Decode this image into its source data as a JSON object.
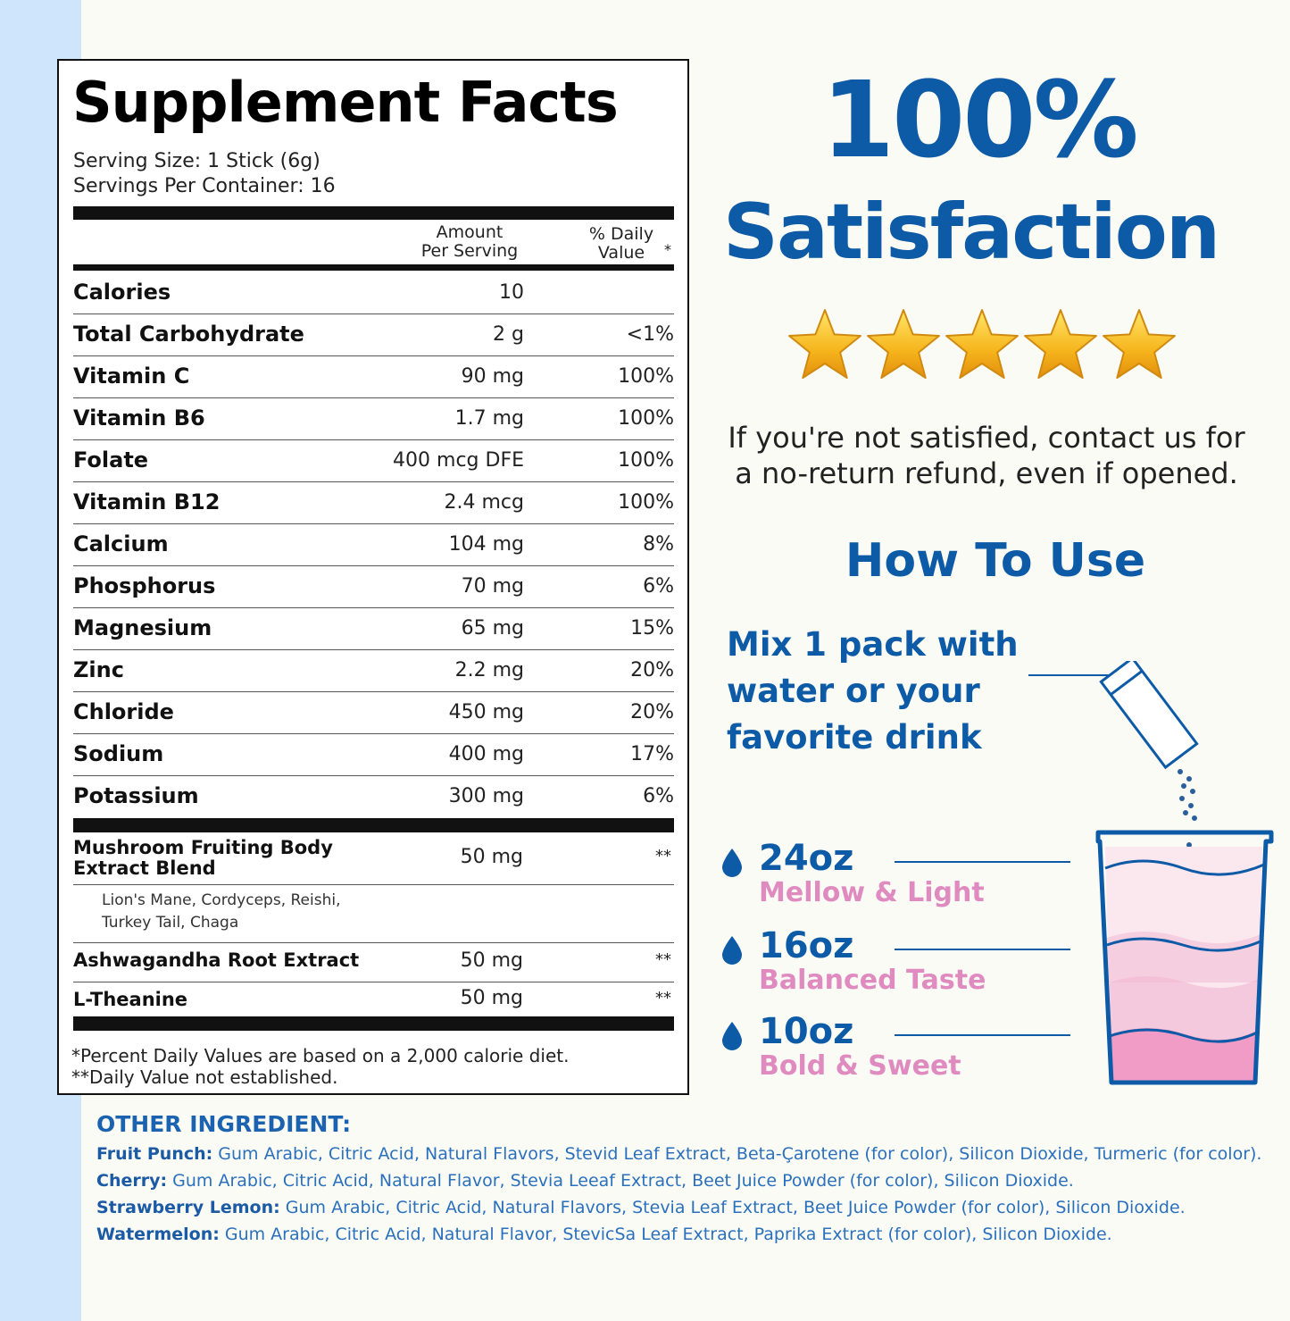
{
  "facts": {
    "title": "Supplement Facts",
    "serving_size": "Serving Size: 1 Stick (6g)",
    "servings_per_container": "Servings Per Container: 16",
    "col_amount_1": "Amount",
    "col_amount_2": "Per Serving",
    "col_dv_1": "% Daily",
    "col_dv_2": "Value",
    "col_dv_star": "*",
    "rows": [
      {
        "name": "Calories",
        "amount": "10",
        "dv": ""
      },
      {
        "name": "Total Carbohydrate",
        "amount": "2 g",
        "dv": "<1%"
      },
      {
        "name": "Vitamin C",
        "amount": "90 mg",
        "dv": "100%"
      },
      {
        "name": "Vitamin B6",
        "amount": "1.7 mg",
        "dv": "100%"
      },
      {
        "name": "Folate",
        "amount": "400 mcg DFE",
        "dv": "100%"
      },
      {
        "name": "Vitamin B12",
        "amount": "2.4 mcg",
        "dv": "100%"
      },
      {
        "name": "Calcium",
        "amount": "104 mg",
        "dv": "8%"
      },
      {
        "name": "Phosphorus",
        "amount": "70 mg",
        "dv": "6%"
      },
      {
        "name": "Magnesium",
        "amount": "65 mg",
        "dv": "15%"
      },
      {
        "name": "Zinc",
        "amount": "2.2 mg",
        "dv": "20%"
      },
      {
        "name": "Chloride",
        "amount": "450 mg",
        "dv": "20%"
      },
      {
        "name": "Sodium",
        "amount": "400 mg",
        "dv": "17%"
      },
      {
        "name": "Potassium",
        "amount": "300 mg",
        "dv": "6%"
      }
    ],
    "blend": {
      "name_1": "Mushroom Fruiting Body",
      "name_2": "Extract Blend",
      "amount": "50 mg",
      "dv": "**",
      "sub_1": "Lion's Mane, Cordyceps, Reishi,",
      "sub_2": "Turkey Tail, Chaga"
    },
    "ashwagandha": {
      "name": "Ashwagandha Root Extract",
      "amount": "50 mg",
      "dv": "**"
    },
    "theanine": {
      "name": "L-Theanine",
      "amount": "50 mg",
      "dv": "**"
    },
    "footnote_1": "*Percent Daily Values are based on a 2,000 calorie diet.",
    "footnote_2": "**Daily Value not established."
  },
  "satisfaction": {
    "percent": "100%",
    "label": "Satisfaction",
    "stars": 5,
    "star_color": "#f5b51e",
    "guarantee_1": "If you're not satisfied, contact us for",
    "guarantee_2": "a no-return refund, even if opened."
  },
  "how_to": {
    "title": "How To Use",
    "mix_1": "Mix 1 pack with",
    "mix_2": "water or your",
    "mix_3": "favorite drink",
    "sizes": [
      {
        "oz": "24oz",
        "desc": "Mellow & Light"
      },
      {
        "oz": "16oz",
        "desc": "Balanced Taste"
      },
      {
        "oz": "10oz",
        "desc": "Bold & Sweet"
      }
    ]
  },
  "other_ingredients": {
    "title": "OTHER INGREDIENT:",
    "items": [
      {
        "flavor": "Fruit Punch:",
        "text": " Gum Arabic, Citric Acid, Natural Flavors, Stevid Leaf Extract, Beta-Çarotene (for color), Silicon Dioxide, Turmeric (for color)."
      },
      {
        "flavor": "Cherry:",
        "text": " Gum Arabic, Citric Acid, Natural Flavor, Stevia Leeaf Extract, Beet Juice Powder (for color), Silicon Dioxide."
      },
      {
        "flavor": "Strawberry Lemon:",
        "text": " Gum Arabic, Citric Acid, Natural Flavors, Stevia Leaf Extract, Beet Juice Powder (for color), Silicon Dioxide."
      },
      {
        "flavor": "Watermelon:",
        "text": " Gum Arabic, Citric Acid, Natural Flavor, StevicSa Leaf Extract, Paprika Extract (for color), Silicon Dioxide."
      }
    ]
  },
  "colors": {
    "brand_blue": "#0d5aa7",
    "pink": "#e08bc0",
    "side_band": "#cfe5fb"
  }
}
